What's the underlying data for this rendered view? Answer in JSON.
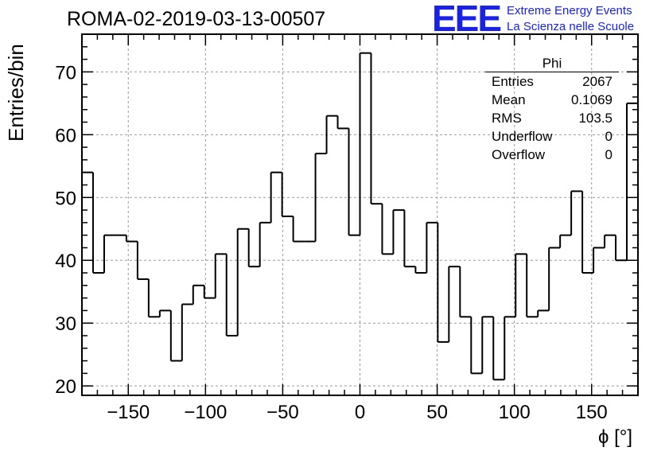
{
  "title": "ROMA-02-2019-03-13-00507",
  "logo": {
    "mark": "EEE",
    "line1": "Extreme Energy Events",
    "line2": "La Scienza nelle Scuole",
    "color": "#1a22e6"
  },
  "stats": {
    "name": "Phi",
    "rows": [
      {
        "label": "Entries",
        "value": "2067"
      },
      {
        "label": "Mean",
        "value": "0.1069"
      },
      {
        "label": "RMS",
        "value": "103.5"
      },
      {
        "label": "Underflow",
        "value": "0"
      },
      {
        "label": "Overflow",
        "value": "0"
      }
    ]
  },
  "chart_data": {
    "type": "bar",
    "style": "step-histogram",
    "title": "ROMA-02-2019-03-13-00507",
    "xlabel": "ϕ [°]",
    "ylabel": "Entries/bin",
    "xlim": [
      -180,
      180
    ],
    "ylim": [
      18.5,
      76
    ],
    "xticks": [
      -150,
      -100,
      -50,
      0,
      50,
      100,
      150
    ],
    "xtick_labels": [
      "−150",
      "−100",
      "−50",
      "0",
      "50",
      "100",
      "150"
    ],
    "yticks": [
      20,
      30,
      40,
      50,
      60,
      70
    ],
    "grid": true,
    "bin_width": 7.2,
    "values": [
      54,
      38,
      44,
      44,
      43,
      37,
      31,
      32,
      24,
      33,
      36,
      34,
      41,
      28,
      45,
      39,
      46,
      54,
      47,
      43,
      43,
      57,
      63,
      61,
      44,
      73,
      49,
      41,
      48,
      39,
      38,
      46,
      27,
      39,
      31,
      22,
      31,
      21,
      31,
      41,
      31,
      32,
      42,
      44,
      51,
      38,
      42,
      44,
      40,
      65
    ],
    "line_color": "#000000",
    "grid_color": "#999999"
  }
}
